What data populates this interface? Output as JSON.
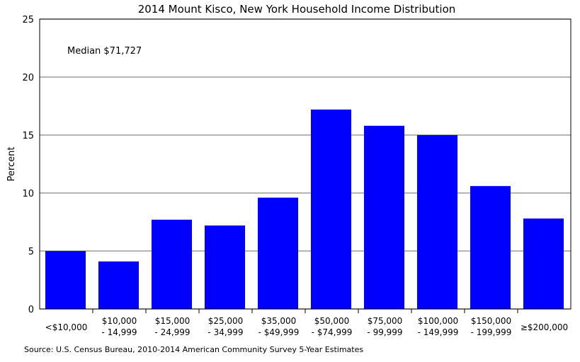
{
  "chart_data": {
    "type": "bar",
    "title": "2014 Mount Kisco, New York Household Income Distribution",
    "xlabel": "",
    "ylabel": "Percent",
    "ylim": [
      0,
      25
    ],
    "yticks": [
      "0",
      "5",
      "10",
      "15",
      "20",
      "25"
    ],
    "grid": true,
    "categories": [
      [
        "<$10,000",
        ""
      ],
      [
        "$10,000",
        "- 14,999"
      ],
      [
        "$15,000",
        "- 24,999"
      ],
      [
        "$25,000",
        "- 34,999"
      ],
      [
        "$35,000",
        "- $49,999"
      ],
      [
        "$50,000",
        "- $74,999"
      ],
      [
        "$75,000",
        "- 99,999"
      ],
      [
        "$100,000",
        "- 149,999"
      ],
      [
        "$150,000",
        "- 199,999"
      ],
      [
        "≥$200,000",
        ""
      ]
    ],
    "values": [
      5.0,
      4.1,
      7.7,
      7.2,
      9.6,
      17.2,
      15.8,
      15.0,
      10.6,
      7.8
    ],
    "bar_color": "#0000ff",
    "annotation": "Median $71,727",
    "source": "Source: U.S. Census Bureau, 2010-2014 American Community Survey 5-Year Estimates"
  }
}
